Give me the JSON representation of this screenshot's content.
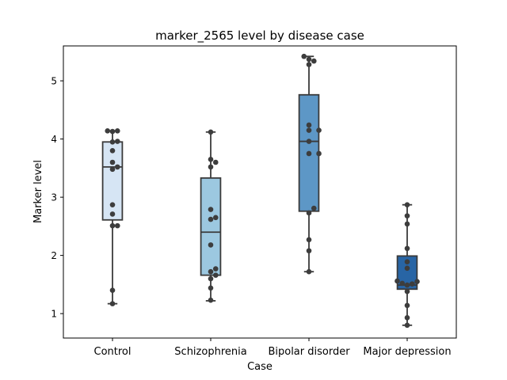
{
  "chart_data": {
    "type": "box",
    "title": "marker_2565 level by disease case",
    "xlabel": "Case",
    "ylabel": "Marker level",
    "ylim": [
      0.58,
      5.6
    ],
    "yticks": [
      1,
      2,
      3,
      4,
      5
    ],
    "grid": false,
    "legend": "none",
    "categories": [
      "Control",
      "Schizophrenia",
      "Bipolar disorder",
      "Major depression"
    ],
    "boxes": [
      {
        "whisker_low": 1.17,
        "q1": 2.61,
        "median": 3.52,
        "q3": 3.95,
        "whisker_high": 4.14
      },
      {
        "whisker_low": 1.22,
        "q1": 1.66,
        "median": 2.4,
        "q3": 3.33,
        "whisker_high": 4.12
      },
      {
        "whisker_low": 1.72,
        "q1": 2.76,
        "median": 3.96,
        "q3": 4.76,
        "whisker_high": 5.42
      },
      {
        "whisker_low": 0.8,
        "q1": 1.42,
        "median": 1.49,
        "q3": 1.99,
        "whisker_high": 2.87
      }
    ],
    "points": [
      [
        4.14,
        4.14,
        4.13,
        3.96,
        3.95,
        3.8,
        3.6,
        3.52,
        3.48,
        2.87,
        2.71,
        2.51,
        2.51,
        1.4,
        1.17
      ],
      [
        4.12,
        3.65,
        3.6,
        3.52,
        2.79,
        2.65,
        2.62,
        2.18,
        1.77,
        1.72,
        1.66,
        1.6,
        1.44,
        1.23
      ],
      [
        5.42,
        5.37,
        5.34,
        5.28,
        4.24,
        4.15,
        4.15,
        3.96,
        3.75,
        3.75,
        2.81,
        2.73,
        2.27,
        2.08,
        1.72
      ],
      [
        2.87,
        2.68,
        2.54,
        2.12,
        1.89,
        1.78,
        1.56,
        1.55,
        1.52,
        1.51,
        1.49,
        1.38,
        1.14,
        0.93,
        0.8
      ]
    ],
    "colors": [
      "#d6e5f4",
      "#9cc8e0",
      "#5d97c6",
      "#2865a5"
    ]
  }
}
